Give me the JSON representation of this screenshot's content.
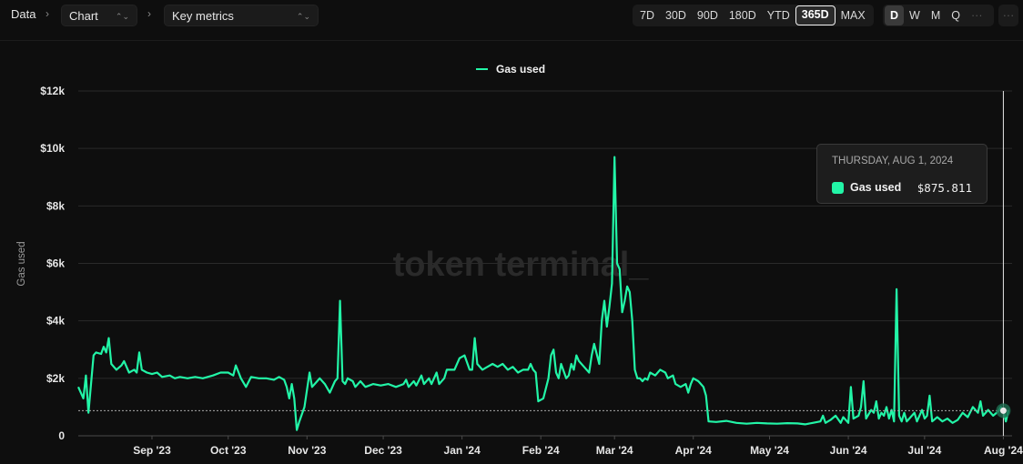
{
  "toolbar": {
    "breadcrumb_root": "Data",
    "chart_select": "Chart",
    "metrics_select": "Key metrics",
    "ranges": [
      "7D",
      "30D",
      "90D",
      "180D",
      "YTD",
      "365D",
      "MAX"
    ],
    "active_range": "365D",
    "granularity": [
      "D",
      "W",
      "M",
      "Q",
      "···"
    ],
    "active_granularity": "D",
    "more": "···"
  },
  "watermark": "token terminal_",
  "tooltip": {
    "date": "THURSDAY, AUG 1, 2024",
    "series": "Gas used",
    "value": "$875.811"
  },
  "colors": {
    "series": "#22f5a7",
    "background": "#0e0e0e"
  },
  "chart_data": {
    "type": "line",
    "ylabel": "Gas used",
    "legend": [
      "Gas used"
    ],
    "legend_position": "top-center",
    "ylim": [
      0,
      12000
    ],
    "yticks": [
      0,
      2000,
      4000,
      6000,
      8000,
      10000,
      12000
    ],
    "ytick_labels": [
      "0",
      "$2k",
      "$4k",
      "$6k",
      "$8k",
      "$10k",
      "$12k"
    ],
    "x_ticks": [
      {
        "label": "Sep '23",
        "date": "2023-09-01"
      },
      {
        "label": "Oct '23",
        "date": "2023-10-01"
      },
      {
        "label": "Nov '23",
        "date": "2023-11-01"
      },
      {
        "label": "Dec '23",
        "date": "2023-12-01"
      },
      {
        "label": "Jan '24",
        "date": "2024-01-01"
      },
      {
        "label": "Feb '24",
        "date": "2024-02-01"
      },
      {
        "label": "Mar '24",
        "date": "2024-03-01"
      },
      {
        "label": "Apr '24",
        "date": "2024-04-01"
      },
      {
        "label": "May '24",
        "date": "2024-05-01"
      },
      {
        "label": "Jun '24",
        "date": "2024-06-01"
      },
      {
        "label": "Jul '24",
        "date": "2024-07-01"
      },
      {
        "label": "Aug '24",
        "date": "2024-08-01"
      }
    ],
    "grid": true,
    "series": [
      {
        "name": "Gas used",
        "points": [
          [
            "2023-08-03",
            1700
          ],
          [
            "2023-08-05",
            1300
          ],
          [
            "2023-08-06",
            2100
          ],
          [
            "2023-08-07",
            800
          ],
          [
            "2023-08-09",
            2800
          ],
          [
            "2023-08-10",
            2900
          ],
          [
            "2023-08-12",
            2850
          ],
          [
            "2023-08-13",
            3100
          ],
          [
            "2023-08-14",
            2900
          ],
          [
            "2023-08-15",
            3400
          ],
          [
            "2023-08-16",
            2500
          ],
          [
            "2023-08-18",
            2300
          ],
          [
            "2023-08-20",
            2450
          ],
          [
            "2023-08-21",
            2600
          ],
          [
            "2023-08-23",
            2200
          ],
          [
            "2023-08-25",
            2300
          ],
          [
            "2023-08-26",
            2200
          ],
          [
            "2023-08-27",
            2900
          ],
          [
            "2023-08-28",
            2300
          ],
          [
            "2023-08-30",
            2200
          ],
          [
            "2023-09-01",
            2150
          ],
          [
            "2023-09-03",
            2200
          ],
          [
            "2023-09-05",
            2050
          ],
          [
            "2023-09-08",
            2100
          ],
          [
            "2023-09-10",
            2000
          ],
          [
            "2023-09-12",
            2050
          ],
          [
            "2023-09-15",
            2000
          ],
          [
            "2023-09-18",
            2050
          ],
          [
            "2023-09-21",
            2000
          ],
          [
            "2023-09-25",
            2100
          ],
          [
            "2023-09-28",
            2200
          ],
          [
            "2023-10-01",
            2200
          ],
          [
            "2023-10-03",
            2100
          ],
          [
            "2023-10-04",
            2450
          ],
          [
            "2023-10-06",
            2000
          ],
          [
            "2023-10-08",
            1700
          ],
          [
            "2023-10-10",
            2050
          ],
          [
            "2023-10-13",
            2000
          ],
          [
            "2023-10-16",
            2000
          ],
          [
            "2023-10-19",
            1950
          ],
          [
            "2023-10-21",
            2050
          ],
          [
            "2023-10-23",
            1950
          ],
          [
            "2023-10-24",
            1700
          ],
          [
            "2023-10-25",
            1300
          ],
          [
            "2023-10-26",
            1800
          ],
          [
            "2023-10-27",
            1300
          ],
          [
            "2023-10-28",
            200
          ],
          [
            "2023-10-29",
            500
          ],
          [
            "2023-10-31",
            1000
          ],
          [
            "2023-11-02",
            2200
          ],
          [
            "2023-11-03",
            1700
          ],
          [
            "2023-11-05",
            1900
          ],
          [
            "2023-11-06",
            2000
          ],
          [
            "2023-11-08",
            1800
          ],
          [
            "2023-11-10",
            1500
          ],
          [
            "2023-11-12",
            1900
          ],
          [
            "2023-11-13",
            2000
          ],
          [
            "2023-11-14",
            4700
          ],
          [
            "2023-11-15",
            1900
          ],
          [
            "2023-11-16",
            1800
          ],
          [
            "2023-11-17",
            2000
          ],
          [
            "2023-11-19",
            1900
          ],
          [
            "2023-11-20",
            1700
          ],
          [
            "2023-11-22",
            1900
          ],
          [
            "2023-11-24",
            1700
          ],
          [
            "2023-11-27",
            1800
          ],
          [
            "2023-11-30",
            1750
          ],
          [
            "2023-12-03",
            1800
          ],
          [
            "2023-12-06",
            1700
          ],
          [
            "2023-12-09",
            1800
          ],
          [
            "2023-12-10",
            1950
          ],
          [
            "2023-12-11",
            1700
          ],
          [
            "2023-12-13",
            1900
          ],
          [
            "2023-12-14",
            1750
          ],
          [
            "2023-12-16",
            2100
          ],
          [
            "2023-12-17",
            1800
          ],
          [
            "2023-12-19",
            2000
          ],
          [
            "2023-12-20",
            1800
          ],
          [
            "2023-12-22",
            2200
          ],
          [
            "2023-12-23",
            1800
          ],
          [
            "2023-12-25",
            2000
          ],
          [
            "2023-12-26",
            2300
          ],
          [
            "2023-12-29",
            2300
          ],
          [
            "2023-12-31",
            2700
          ],
          [
            "2024-01-02",
            2800
          ],
          [
            "2024-01-04",
            2300
          ],
          [
            "2024-01-05",
            2300
          ],
          [
            "2024-01-06",
            3400
          ],
          [
            "2024-01-07",
            2500
          ],
          [
            "2024-01-09",
            2300
          ],
          [
            "2024-01-11",
            2400
          ],
          [
            "2024-01-13",
            2500
          ],
          [
            "2024-01-15",
            2400
          ],
          [
            "2024-01-17",
            2500
          ],
          [
            "2024-01-19",
            2300
          ],
          [
            "2024-01-21",
            2400
          ],
          [
            "2024-01-23",
            2200
          ],
          [
            "2024-01-25",
            2300
          ],
          [
            "2024-01-27",
            2300
          ],
          [
            "2024-01-28",
            2500
          ],
          [
            "2024-01-29",
            2300
          ],
          [
            "2024-01-30",
            2200
          ],
          [
            "2024-01-31",
            1200
          ],
          [
            "2024-02-02",
            1300
          ],
          [
            "2024-02-04",
            2000
          ],
          [
            "2024-02-05",
            2800
          ],
          [
            "2024-02-06",
            3000
          ],
          [
            "2024-02-07",
            2200
          ],
          [
            "2024-02-08",
            2000
          ],
          [
            "2024-02-09",
            2500
          ],
          [
            "2024-02-11",
            2000
          ],
          [
            "2024-02-12",
            2100
          ],
          [
            "2024-02-13",
            2500
          ],
          [
            "2024-02-14",
            2300
          ],
          [
            "2024-02-15",
            2800
          ],
          [
            "2024-02-16",
            2600
          ],
          [
            "2024-02-18",
            2400
          ],
          [
            "2024-02-20",
            2200
          ],
          [
            "2024-02-21",
            2800
          ],
          [
            "2024-02-22",
            3200
          ],
          [
            "2024-02-24",
            2500
          ],
          [
            "2024-02-25",
            4000
          ],
          [
            "2024-02-26",
            4700
          ],
          [
            "2024-02-27",
            3800
          ],
          [
            "2024-02-28",
            4500
          ],
          [
            "2024-02-29",
            5300
          ],
          [
            "2024-03-01",
            9700
          ],
          [
            "2024-03-02",
            6000
          ],
          [
            "2024-03-03",
            5800
          ],
          [
            "2024-03-04",
            4300
          ],
          [
            "2024-03-05",
            4700
          ],
          [
            "2024-03-06",
            5200
          ],
          [
            "2024-03-07",
            5000
          ],
          [
            "2024-03-08",
            4000
          ],
          [
            "2024-03-09",
            2300
          ],
          [
            "2024-03-10",
            2000
          ],
          [
            "2024-03-11",
            2000
          ],
          [
            "2024-03-12",
            1900
          ],
          [
            "2024-03-13",
            2000
          ],
          [
            "2024-03-14",
            1950
          ],
          [
            "2024-03-15",
            2200
          ],
          [
            "2024-03-17",
            2100
          ],
          [
            "2024-03-19",
            2300
          ],
          [
            "2024-03-21",
            2200
          ],
          [
            "2024-03-22",
            2000
          ],
          [
            "2024-03-24",
            2100
          ],
          [
            "2024-03-25",
            1800
          ],
          [
            "2024-03-27",
            1700
          ],
          [
            "2024-03-29",
            1800
          ],
          [
            "2024-03-30",
            1500
          ],
          [
            "2024-03-31",
            1800
          ],
          [
            "2024-04-01",
            2000
          ],
          [
            "2024-04-03",
            1900
          ],
          [
            "2024-04-04",
            1800
          ],
          [
            "2024-04-05",
            1700
          ],
          [
            "2024-04-06",
            1400
          ],
          [
            "2024-04-07",
            500
          ],
          [
            "2024-04-10",
            480
          ],
          [
            "2024-04-14",
            520
          ],
          [
            "2024-04-18",
            450
          ],
          [
            "2024-04-22",
            420
          ],
          [
            "2024-04-26",
            450
          ],
          [
            "2024-04-30",
            430
          ],
          [
            "2024-05-04",
            420
          ],
          [
            "2024-05-08",
            440
          ],
          [
            "2024-05-12",
            430
          ],
          [
            "2024-05-15",
            400
          ],
          [
            "2024-05-18",
            450
          ],
          [
            "2024-05-21",
            500
          ],
          [
            "2024-05-22",
            700
          ],
          [
            "2024-05-23",
            450
          ],
          [
            "2024-05-25",
            550
          ],
          [
            "2024-05-27",
            700
          ],
          [
            "2024-05-29",
            450
          ],
          [
            "2024-05-30",
            650
          ],
          [
            "2024-06-01",
            450
          ],
          [
            "2024-06-02",
            1700
          ],
          [
            "2024-06-03",
            600
          ],
          [
            "2024-06-05",
            700
          ],
          [
            "2024-06-06",
            1000
          ],
          [
            "2024-06-07",
            1900
          ],
          [
            "2024-06-08",
            600
          ],
          [
            "2024-06-10",
            900
          ],
          [
            "2024-06-11",
            800
          ],
          [
            "2024-06-12",
            1200
          ],
          [
            "2024-06-13",
            600
          ],
          [
            "2024-06-14",
            800
          ],
          [
            "2024-06-15",
            700
          ],
          [
            "2024-06-16",
            1000
          ],
          [
            "2024-06-17",
            600
          ],
          [
            "2024-06-18",
            900
          ],
          [
            "2024-06-19",
            500
          ],
          [
            "2024-06-20",
            5100
          ],
          [
            "2024-06-21",
            700
          ],
          [
            "2024-06-22",
            500
          ],
          [
            "2024-06-23",
            800
          ],
          [
            "2024-06-24",
            500
          ],
          [
            "2024-06-25",
            600
          ],
          [
            "2024-06-27",
            800
          ],
          [
            "2024-06-28",
            500
          ],
          [
            "2024-06-30",
            900
          ],
          [
            "2024-07-01",
            600
          ],
          [
            "2024-07-02",
            700
          ],
          [
            "2024-07-03",
            1400
          ],
          [
            "2024-07-04",
            500
          ],
          [
            "2024-07-06",
            650
          ],
          [
            "2024-07-08",
            500
          ],
          [
            "2024-07-10",
            600
          ],
          [
            "2024-07-12",
            450
          ],
          [
            "2024-07-14",
            550
          ],
          [
            "2024-07-16",
            800
          ],
          [
            "2024-07-18",
            650
          ],
          [
            "2024-07-20",
            1000
          ],
          [
            "2024-07-22",
            800
          ],
          [
            "2024-07-23",
            1200
          ],
          [
            "2024-07-24",
            700
          ],
          [
            "2024-07-26",
            900
          ],
          [
            "2024-07-28",
            700
          ],
          [
            "2024-07-30",
            850
          ],
          [
            "2024-07-31",
            1000
          ],
          [
            "2024-08-01",
            876
          ],
          [
            "2024-08-02",
            500
          ],
          [
            "2024-08-03",
            900
          ]
        ]
      }
    ],
    "hover": {
      "date": "2024-08-01",
      "value": 875.811
    }
  }
}
